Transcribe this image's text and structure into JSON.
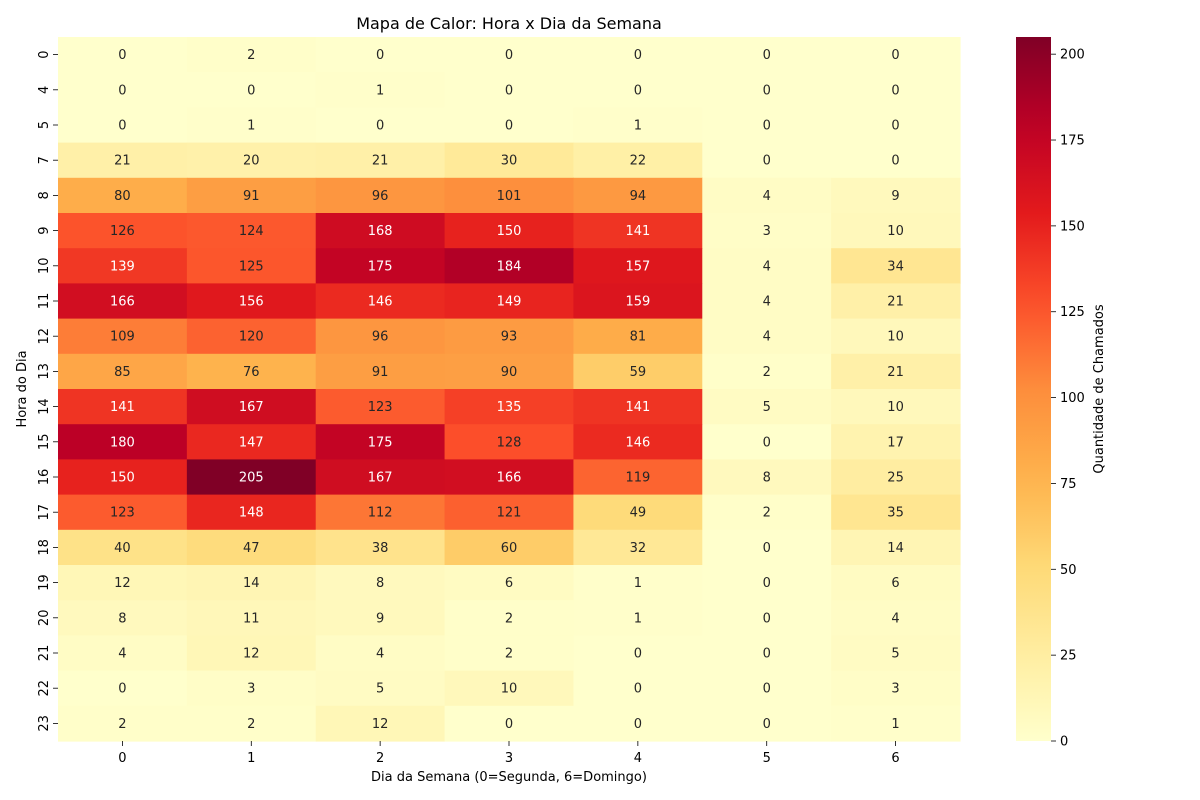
{
  "chart_data": {
    "type": "heatmap",
    "title": "Mapa de Calor: Hora x Dia da Semana",
    "xlabel": "Dia da Semana (0=Segunda, 6=Domingo)",
    "ylabel": "Hora do Dia",
    "x_categories": [
      "0",
      "1",
      "2",
      "3",
      "4",
      "5",
      "6"
    ],
    "y_categories": [
      "0",
      "4",
      "5",
      "7",
      "8",
      "9",
      "10",
      "11",
      "12",
      "13",
      "14",
      "15",
      "16",
      "17",
      "18",
      "19",
      "20",
      "21",
      "22",
      "23"
    ],
    "values": [
      [
        0,
        2,
        0,
        0,
        0,
        0,
        0
      ],
      [
        0,
        0,
        1,
        0,
        0,
        0,
        0
      ],
      [
        0,
        1,
        0,
        0,
        1,
        0,
        0
      ],
      [
        21,
        20,
        21,
        30,
        22,
        0,
        0
      ],
      [
        80,
        91,
        96,
        101,
        94,
        4,
        9
      ],
      [
        126,
        124,
        168,
        150,
        141,
        3,
        10
      ],
      [
        139,
        125,
        175,
        184,
        157,
        4,
        34
      ],
      [
        166,
        156,
        146,
        149,
        159,
        4,
        21
      ],
      [
        109,
        120,
        96,
        93,
        81,
        4,
        10
      ],
      [
        85,
        76,
        91,
        90,
        59,
        2,
        21
      ],
      [
        141,
        167,
        123,
        135,
        141,
        5,
        10
      ],
      [
        180,
        147,
        175,
        128,
        146,
        0,
        17
      ],
      [
        150,
        205,
        167,
        166,
        119,
        8,
        25
      ],
      [
        123,
        148,
        112,
        121,
        49,
        2,
        35
      ],
      [
        40,
        47,
        38,
        60,
        32,
        0,
        14
      ],
      [
        12,
        14,
        8,
        6,
        1,
        0,
        6
      ],
      [
        8,
        11,
        9,
        2,
        1,
        0,
        4
      ],
      [
        4,
        12,
        4,
        2,
        0,
        0,
        5
      ],
      [
        0,
        3,
        5,
        10,
        0,
        0,
        3
      ],
      [
        2,
        2,
        12,
        0,
        0,
        0,
        1
      ]
    ],
    "colormap": "YlOrRd",
    "vmin": 0,
    "vmax": 205,
    "colorbar": {
      "label": "Quantidade de Chamados",
      "ticks": [
        0,
        25,
        50,
        75,
        100,
        125,
        150,
        175,
        200
      ]
    }
  }
}
